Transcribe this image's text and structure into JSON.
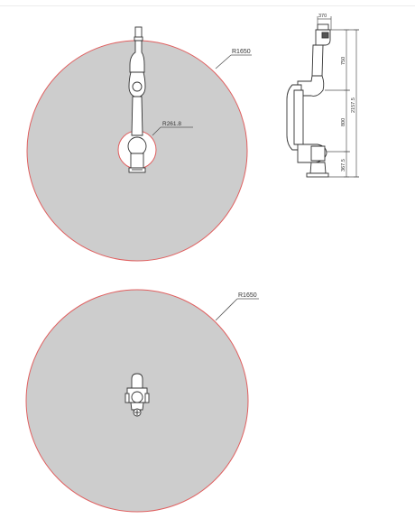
{
  "drawing": {
    "top_view": {
      "outer_radius_label": "R1650",
      "inner_radius_label": "R261.8"
    },
    "side_view": {
      "top_offset_label": "370",
      "segment_upper_label": "750",
      "segment_middle_label": "800",
      "segment_lower_label": "367.5",
      "total_height_label": "2157.5"
    },
    "bottom_view": {
      "outer_radius_label": "R1650"
    }
  },
  "colors": {
    "workspace_fill": "#cdcdcd",
    "workspace_outline": "#e06060",
    "line": "#333333",
    "background": "#ffffff"
  }
}
